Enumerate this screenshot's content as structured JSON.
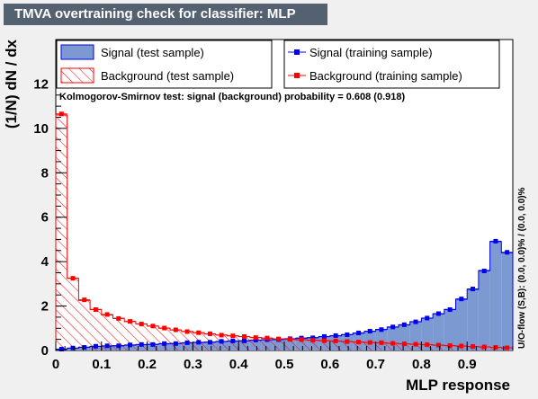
{
  "title": "TMVA overtraining check for classifier: MLP",
  "chart_data": {
    "type": "histogram",
    "xlabel": "MLP response",
    "ylabel": "(1/N) dN / dx",
    "xlim": [
      0,
      1
    ],
    "ylim": [
      0,
      14
    ],
    "x_ticks": [
      "0",
      "0.1",
      "0.2",
      "0.3",
      "0.4",
      "0.5",
      "0.6",
      "0.7",
      "0.8",
      "0.9"
    ],
    "y_ticks": [
      "0",
      "2",
      "4",
      "6",
      "8",
      "10",
      "12"
    ],
    "bin_width": 0.025,
    "legend": [
      "Signal (test sample)",
      "Signal (training sample)",
      "Background (test sample)",
      "Background (training sample)"
    ],
    "ks_text": "Kolmogorov-Smirnov test: signal (background) probability = 0.608 (0.918)",
    "overflow_text": "U/O-flow (S,B): (0.0, 0.0)% / (0.0, 0.0)%",
    "colors": {
      "signal_fill": "#7d99d1",
      "signal_line": "#0000ee",
      "background_hatch": "#ff0000",
      "background_line": "#ff0000"
    },
    "series": [
      {
        "name": "Signal (test sample)",
        "values": [
          0.05,
          0.1,
          0.15,
          0.18,
          0.2,
          0.22,
          0.24,
          0.26,
          0.28,
          0.3,
          0.32,
          0.34,
          0.36,
          0.38,
          0.4,
          0.42,
          0.44,
          0.46,
          0.48,
          0.5,
          0.52,
          0.55,
          0.58,
          0.62,
          0.66,
          0.72,
          0.78,
          0.86,
          0.95,
          1.05,
          1.15,
          1.3,
          1.45,
          1.65,
          1.85,
          2.3,
          2.75,
          3.6,
          4.9,
          4.4
        ]
      },
      {
        "name": "Signal (training sample)",
        "values": [
          0.06,
          0.11,
          0.14,
          0.19,
          0.21,
          0.21,
          0.25,
          0.27,
          0.27,
          0.31,
          0.31,
          0.35,
          0.37,
          0.37,
          0.41,
          0.43,
          0.43,
          0.47,
          0.49,
          0.49,
          0.53,
          0.56,
          0.57,
          0.63,
          0.67,
          0.71,
          0.79,
          0.87,
          0.94,
          1.06,
          1.16,
          1.29,
          1.46,
          1.66,
          1.84,
          2.32,
          2.77,
          3.58,
          4.92,
          4.42
        ]
      },
      {
        "name": "Background (test sample)",
        "values": [
          10.6,
          3.25,
          2.25,
          1.85,
          1.6,
          1.45,
          1.3,
          1.2,
          1.1,
          1.0,
          0.92,
          0.86,
          0.8,
          0.74,
          0.7,
          0.66,
          0.62,
          0.58,
          0.55,
          0.52,
          0.5,
          0.48,
          0.46,
          0.44,
          0.42,
          0.4,
          0.38,
          0.36,
          0.34,
          0.32,
          0.3,
          0.28,
          0.26,
          0.24,
          0.22,
          0.2,
          0.18,
          0.16,
          0.14,
          0.12
        ]
      },
      {
        "name": "Background (training sample)",
        "values": [
          10.65,
          3.25,
          2.28,
          1.84,
          1.62,
          1.44,
          1.31,
          1.19,
          1.1,
          1.01,
          0.93,
          0.85,
          0.8,
          0.75,
          0.69,
          0.66,
          0.63,
          0.58,
          0.56,
          0.52,
          0.5,
          0.49,
          0.46,
          0.44,
          0.43,
          0.4,
          0.38,
          0.36,
          0.35,
          0.32,
          0.3,
          0.28,
          0.26,
          0.24,
          0.22,
          0.2,
          0.18,
          0.16,
          0.14,
          0.12
        ]
      }
    ]
  }
}
